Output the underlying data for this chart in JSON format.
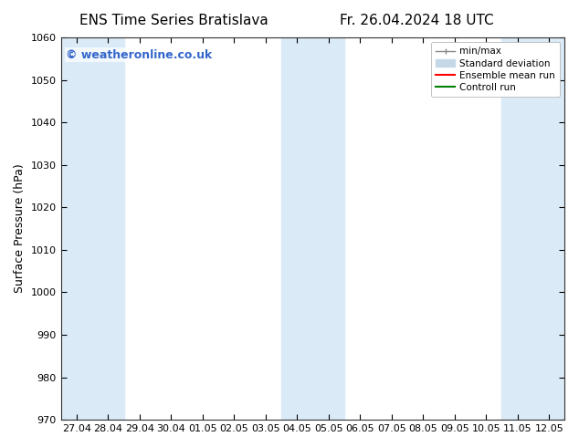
{
  "title_left": "ENS Time Series Bratislava",
  "title_right": "Fr. 26.04.2024 18 UTC",
  "ylabel": "Surface Pressure (hPa)",
  "ylim": [
    970,
    1060
  ],
  "yticks": [
    970,
    980,
    990,
    1000,
    1010,
    1020,
    1030,
    1040,
    1050,
    1060
  ],
  "xtick_labels": [
    "27.04",
    "28.04",
    "29.04",
    "30.04",
    "01.05",
    "02.05",
    "03.05",
    "04.05",
    "05.05",
    "06.05",
    "07.05",
    "08.05",
    "09.05",
    "10.05",
    "11.05",
    "12.05"
  ],
  "watermark": "© weatheronline.co.uk",
  "watermark_color": "#3366cc",
  "shaded_band_color": "#daeaf7",
  "shaded_ranges": [
    [
      0,
      2
    ],
    [
      7,
      9
    ],
    [
      14,
      16
    ]
  ],
  "legend_entries": [
    {
      "label": "min/max",
      "color": "#aaaaaa",
      "style": "minmax"
    },
    {
      "label": "Standard deviation",
      "color": "#c5d8e8",
      "style": "fill"
    },
    {
      "label": "Ensemble mean run",
      "color": "red",
      "style": "line"
    },
    {
      "label": "Controll run",
      "color": "green",
      "style": "line"
    }
  ],
  "bg_color": "#ffffff",
  "title_fontsize": 11,
  "tick_fontsize": 8,
  "label_fontsize": 9,
  "watermark_fontsize": 9
}
